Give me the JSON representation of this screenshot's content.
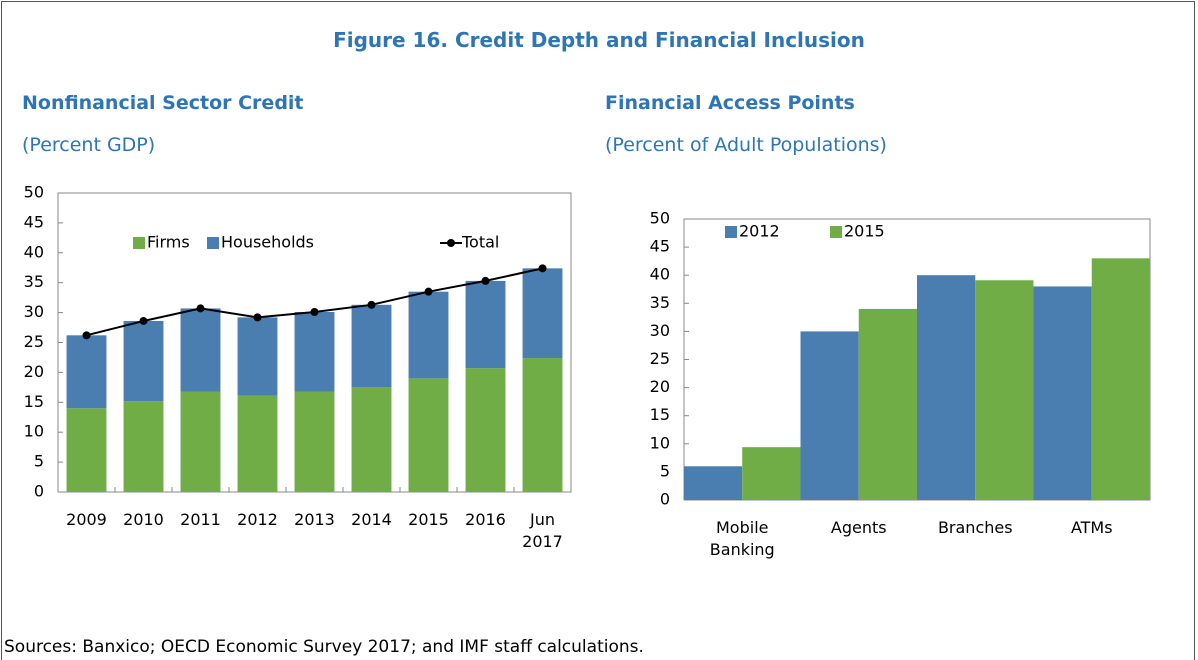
{
  "figure_title": "Figure 16. Credit Depth and Financial Inclusion",
  "source": "Sources: Banxico; OECD Economic Survey 2017; and IMF staff calculations.",
  "chart_data": [
    {
      "type": "bar",
      "stacked": true,
      "title": "Nonfinancial Sector Credit",
      "subtitle": "(Percent GDP)",
      "categories": [
        "2009",
        "2010",
        "2011",
        "2012",
        "2013",
        "2014",
        "2015",
        "2016",
        "Jun 2017"
      ],
      "series": [
        {
          "name": "Firms",
          "color": "#70ad47",
          "values": [
            14.0,
            15.2,
            16.8,
            16.1,
            16.8,
            17.5,
            19.0,
            20.7,
            22.4
          ]
        },
        {
          "name": "Households",
          "color": "#4a7eb0",
          "values": [
            12.2,
            13.4,
            13.9,
            13.1,
            13.3,
            13.8,
            14.5,
            14.6,
            15.0
          ]
        },
        {
          "name": "Total",
          "type": "line",
          "color": "#000000",
          "values": [
            26.2,
            28.6,
            30.7,
            29.2,
            30.1,
            31.3,
            33.5,
            35.3,
            37.4
          ]
        }
      ],
      "ylim": [
        0,
        50
      ],
      "yticks": [
        0,
        5,
        10,
        15,
        20,
        25,
        30,
        35,
        40,
        45,
        50
      ],
      "grid": false
    },
    {
      "type": "bar",
      "stacked": false,
      "title": "Financial Access Points",
      "subtitle": "(Percent of Adult Populations)",
      "categories": [
        "Mobile Banking",
        "Agents",
        "Branches",
        "ATMs"
      ],
      "series": [
        {
          "name": "2012",
          "color": "#4a7eb0",
          "values": [
            6.0,
            30.0,
            40.0,
            38.0
          ]
        },
        {
          "name": "2015",
          "color": "#70ad47",
          "values": [
            9.4,
            34.0,
            39.1,
            43.0
          ]
        }
      ],
      "ylim": [
        0,
        50
      ],
      "yticks": [
        0,
        5,
        10,
        15,
        20,
        25,
        30,
        35,
        40,
        45,
        50
      ],
      "grid": false
    }
  ]
}
